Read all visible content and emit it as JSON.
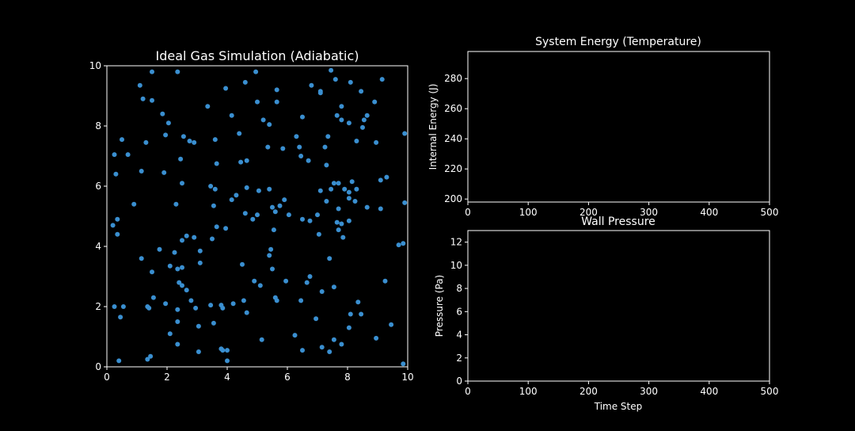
{
  "chart_data": [
    {
      "type": "scatter",
      "title": "Ideal Gas Simulation (Adiabatic)",
      "xlabel": "",
      "ylabel": "",
      "xlim": [
        0,
        10
      ],
      "ylim": [
        0,
        10
      ],
      "xticks": [
        "0",
        "2",
        "4",
        "6",
        "8",
        "10"
      ],
      "yticks": [
        "0",
        "2",
        "4",
        "6",
        "8",
        "10"
      ],
      "grid": false,
      "marker_color": "#3a8fd0",
      "points": [
        [
          1.1,
          9.35
        ],
        [
          1.5,
          9.8
        ],
        [
          2.35,
          9.8
        ],
        [
          4.6,
          9.45
        ],
        [
          4.95,
          9.8
        ],
        [
          6.8,
          9.35
        ],
        [
          7.1,
          9.15
        ],
        [
          7.45,
          9.85
        ],
        [
          7.6,
          9.55
        ],
        [
          8.1,
          9.45
        ],
        [
          8.45,
          9.15
        ],
        [
          9.15,
          9.55
        ],
        [
          1.2,
          8.9
        ],
        [
          1.5,
          8.85
        ],
        [
          3.35,
          8.65
        ],
        [
          3.95,
          9.25
        ],
        [
          4.15,
          8.35
        ],
        [
          5.0,
          8.8
        ],
        [
          5.2,
          8.2
        ],
        [
          5.65,
          8.8
        ],
        [
          5.65,
          9.2
        ],
        [
          6.5,
          8.3
        ],
        [
          7.1,
          9.1
        ],
        [
          7.65,
          8.35
        ],
        [
          7.8,
          8.65
        ],
        [
          8.05,
          8.1
        ],
        [
          8.5,
          7.95
        ],
        [
          8.55,
          8.2
        ],
        [
          8.65,
          8.35
        ],
        [
          8.9,
          8.8
        ],
        [
          0.5,
          7.55
        ],
        [
          0.25,
          7.05
        ],
        [
          0.7,
          7.05
        ],
        [
          1.3,
          7.45
        ],
        [
          1.85,
          8.4
        ],
        [
          1.95,
          7.7
        ],
        [
          2.05,
          8.1
        ],
        [
          2.55,
          7.65
        ],
        [
          2.75,
          7.5
        ],
        [
          2.9,
          7.45
        ],
        [
          3.6,
          7.55
        ],
        [
          4.4,
          7.75
        ],
        [
          5.4,
          8.05
        ],
        [
          5.85,
          7.25
        ],
        [
          6.3,
          7.65
        ],
        [
          6.4,
          7.3
        ],
        [
          6.45,
          7.0
        ],
        [
          6.7,
          6.85
        ],
        [
          7.25,
          7.3
        ],
        [
          7.35,
          7.65
        ],
        [
          7.8,
          8.2
        ],
        [
          8.3,
          7.5
        ],
        [
          8.95,
          7.45
        ],
        [
          9.9,
          7.75
        ],
        [
          0.3,
          6.4
        ],
        [
          1.15,
          6.5
        ],
        [
          1.9,
          6.45
        ],
        [
          2.45,
          6.9
        ],
        [
          2.5,
          6.1
        ],
        [
          3.65,
          6.75
        ],
        [
          4.45,
          6.8
        ],
        [
          4.65,
          6.85
        ],
        [
          5.35,
          7.3
        ],
        [
          7.3,
          6.7
        ],
        [
          7.55,
          6.1
        ],
        [
          7.7,
          6.1
        ],
        [
          7.9,
          5.9
        ],
        [
          8.15,
          6.15
        ],
        [
          8.3,
          5.9
        ],
        [
          9.1,
          6.2
        ],
        [
          9.3,
          6.3
        ],
        [
          0.9,
          5.4
        ],
        [
          2.3,
          5.4
        ],
        [
          3.45,
          6.0
        ],
        [
          3.6,
          5.9
        ],
        [
          4.15,
          5.55
        ],
        [
          4.3,
          5.7
        ],
        [
          4.65,
          5.95
        ],
        [
          4.85,
          4.9
        ],
        [
          5.0,
          5.05
        ],
        [
          5.05,
          5.85
        ],
        [
          5.4,
          5.9
        ],
        [
          5.5,
          5.3
        ],
        [
          5.6,
          5.15
        ],
        [
          5.75,
          5.35
        ],
        [
          5.9,
          5.55
        ],
        [
          6.05,
          5.05
        ],
        [
          6.5,
          4.9
        ],
        [
          7.0,
          5.05
        ],
        [
          7.1,
          5.85
        ],
        [
          7.3,
          5.5
        ],
        [
          7.45,
          5.9
        ],
        [
          7.7,
          5.25
        ],
        [
          8.05,
          5.6
        ],
        [
          8.05,
          5.8
        ],
        [
          8.25,
          5.5
        ],
        [
          8.65,
          5.3
        ],
        [
          9.1,
          5.25
        ],
        [
          9.9,
          5.45
        ],
        [
          0.2,
          4.7
        ],
        [
          0.35,
          4.9
        ],
        [
          0.35,
          4.4
        ],
        [
          2.65,
          4.35
        ],
        [
          2.5,
          4.2
        ],
        [
          2.9,
          4.3
        ],
        [
          3.5,
          4.25
        ],
        [
          3.55,
          5.35
        ],
        [
          3.65,
          4.65
        ],
        [
          3.95,
          4.6
        ],
        [
          4.6,
          5.1
        ],
        [
          5.55,
          4.55
        ],
        [
          6.75,
          4.85
        ],
        [
          7.05,
          4.4
        ],
        [
          7.65,
          4.8
        ],
        [
          7.8,
          4.75
        ],
        [
          7.85,
          4.3
        ],
        [
          8.05,
          4.85
        ],
        [
          9.7,
          4.05
        ],
        [
          9.85,
          4.1
        ],
        [
          1.15,
          3.6
        ],
        [
          1.5,
          3.15
        ],
        [
          1.75,
          3.9
        ],
        [
          2.1,
          3.35
        ],
        [
          2.25,
          3.8
        ],
        [
          2.35,
          3.25
        ],
        [
          2.5,
          3.3
        ],
        [
          3.1,
          3.85
        ],
        [
          3.1,
          3.45
        ],
        [
          4.5,
          3.4
        ],
        [
          5.4,
          3.7
        ],
        [
          5.45,
          3.9
        ],
        [
          5.5,
          3.25
        ],
        [
          7.4,
          3.6
        ],
        [
          7.7,
          4.55
        ],
        [
          1.35,
          2.0
        ],
        [
          1.55,
          2.3
        ],
        [
          1.95,
          2.1
        ],
        [
          2.35,
          1.9
        ],
        [
          2.4,
          2.8
        ],
        [
          2.5,
          2.7
        ],
        [
          2.65,
          2.55
        ],
        [
          2.8,
          2.2
        ],
        [
          2.95,
          1.95
        ],
        [
          3.45,
          2.05
        ],
        [
          3.8,
          2.05
        ],
        [
          4.2,
          2.1
        ],
        [
          4.55,
          2.2
        ],
        [
          4.65,
          1.8
        ],
        [
          4.9,
          2.85
        ],
        [
          5.1,
          2.7
        ],
        [
          5.6,
          2.3
        ],
        [
          5.65,
          2.2
        ],
        [
          5.95,
          2.85
        ],
        [
          6.45,
          2.2
        ],
        [
          6.65,
          2.8
        ],
        [
          6.75,
          3.0
        ],
        [
          7.15,
          2.5
        ],
        [
          7.55,
          2.65
        ],
        [
          8.35,
          2.15
        ],
        [
          8.45,
          1.75
        ],
        [
          9.25,
          2.85
        ],
        [
          0.25,
          2.0
        ],
        [
          0.45,
          1.65
        ],
        [
          0.55,
          2.0
        ],
        [
          1.4,
          1.95
        ],
        [
          2.1,
          1.1
        ],
        [
          2.35,
          1.5
        ],
        [
          3.05,
          1.35
        ],
        [
          3.55,
          1.45
        ],
        [
          3.85,
          1.95
        ],
        [
          5.15,
          0.9
        ],
        [
          6.25,
          1.05
        ],
        [
          6.95,
          1.6
        ],
        [
          7.55,
          0.9
        ],
        [
          8.05,
          1.3
        ],
        [
          8.1,
          1.75
        ],
        [
          8.95,
          0.95
        ],
        [
          9.45,
          1.4
        ],
        [
          0.4,
          0.2
        ],
        [
          1.35,
          0.25
        ],
        [
          1.45,
          0.35
        ],
        [
          2.35,
          0.75
        ],
        [
          3.05,
          0.5
        ],
        [
          3.8,
          0.6
        ],
        [
          3.85,
          0.55
        ],
        [
          4.0,
          0.55
        ],
        [
          4.0,
          0.2
        ],
        [
          6.5,
          0.55
        ],
        [
          7.15,
          0.65
        ],
        [
          7.4,
          0.5
        ],
        [
          7.8,
          0.75
        ],
        [
          9.85,
          0.1
        ]
      ]
    },
    {
      "type": "line",
      "title": "System Energy (Temperature)",
      "xlabel": "",
      "ylabel": "Internal Energy (J)",
      "xlim": [
        0,
        500
      ],
      "ylim": [
        198,
        298
      ],
      "xticks": [
        "0",
        "100",
        "200",
        "300",
        "400",
        "500"
      ],
      "yticks": [
        "200",
        "220",
        "240",
        "260",
        "280"
      ],
      "grid": false,
      "x": [],
      "y": []
    },
    {
      "type": "line",
      "title": "Wall Pressure",
      "xlabel": "Time Step",
      "ylabel": "Pressure (Pa)",
      "xlim": [
        0,
        500
      ],
      "ylim": [
        0,
        13
      ],
      "xticks": [
        "0",
        "100",
        "200",
        "300",
        "400",
        "500"
      ],
      "yticks": [
        "0",
        "2",
        "4",
        "6",
        "8",
        "10",
        "12"
      ],
      "grid": false,
      "x": [],
      "y": []
    }
  ]
}
